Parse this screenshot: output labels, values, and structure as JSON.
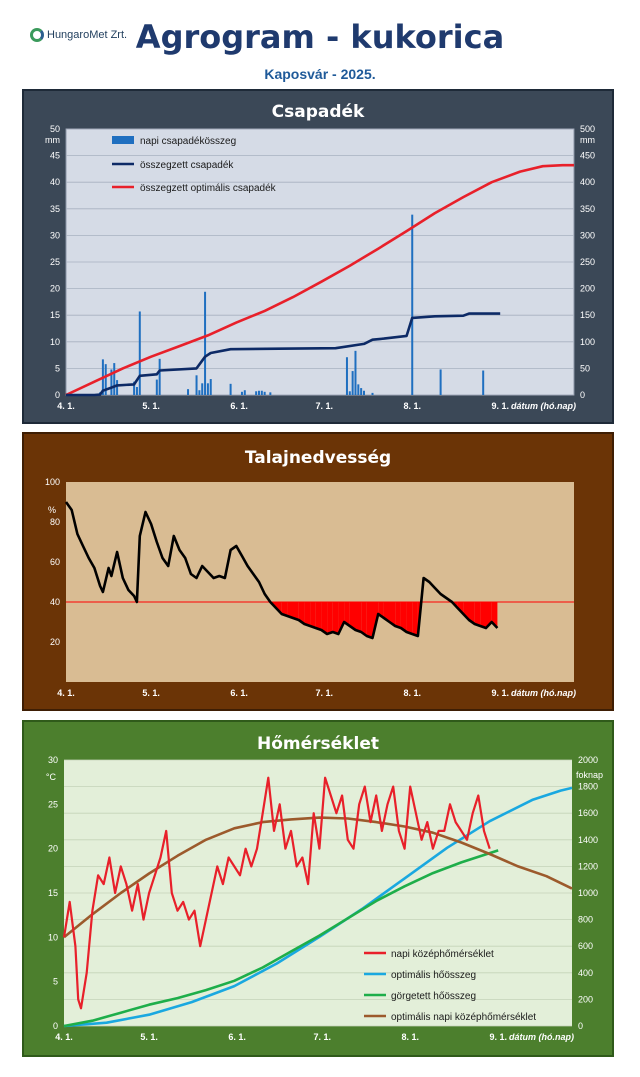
{
  "header": {
    "logo_text": "HungaroMet Zrt.",
    "title": "Agrogram - kukorica",
    "subtitle": "Kaposvár  - 2025."
  },
  "x_axis": {
    "tick_labels": [
      "4. 1.",
      "5. 1.",
      "6. 1.",
      "7. 1.",
      "8. 1.",
      "9. 1."
    ],
    "label": "dátum (hó.nap)",
    "domain_days": [
      0,
      179
    ]
  },
  "colors": {
    "precip_bar": "#1f6fc0",
    "precip_cum": "#0d2a66",
    "precip_opt": "#e8202a",
    "soil_line": "#000000",
    "soil_deficit": "#ff0000",
    "temp_daily": "#e8202a",
    "temp_opt_sum": "#1aa8e0",
    "temp_gdd": "#1eae4a",
    "temp_opt_daily": "#9c5a2c"
  },
  "chart_data": [
    {
      "type": "bar",
      "title": "Csapadék",
      "y_unit_left": "mm",
      "y_unit_right": "mm",
      "ylim_left": [
        0,
        50
      ],
      "ylim_right": [
        0,
        500
      ],
      "y_ticks_left": [
        "0",
        "5",
        "10",
        "15",
        "20",
        "25",
        "30",
        "35",
        "40",
        "45",
        "50"
      ],
      "y_ticks_right": [
        "0",
        "50",
        "100",
        "150",
        "200",
        "250",
        "300",
        "350",
        "400",
        "450",
        "500"
      ],
      "grid": true,
      "legend_position": "top-left",
      "series": [
        {
          "name": "napi csapadékösszeg",
          "kind": "bar",
          "x_day": [
            12,
            13,
            14,
            16,
            17,
            18,
            24,
            25,
            26,
            32,
            33,
            43,
            46,
            47,
            48,
            49,
            50,
            51,
            58,
            62,
            63,
            67,
            68,
            69,
            70,
            72,
            99,
            100,
            101,
            102,
            103,
            104,
            105,
            108,
            122,
            132,
            147
          ],
          "values": [
            0.5,
            6.7,
            5.8,
            4.8,
            6.0,
            2.8,
            2.5,
            1.5,
            15.7,
            2.9,
            6.8,
            1.1,
            3.7,
            0.9,
            2.2,
            19.4,
            2.2,
            3.0,
            2.1,
            0.6,
            0.9,
            0.7,
            0.8,
            0.8,
            0.6,
            0.5,
            7.1,
            0.7,
            4.5,
            8.3,
            2.0,
            1.3,
            0.8,
            0.4,
            33.9,
            4.8,
            4.6
          ]
        },
        {
          "name": "összegzett csapadék",
          "kind": "line",
          "axis": "right",
          "x_day": [
            0,
            5,
            10,
            12,
            13,
            16,
            18,
            24,
            26,
            32,
            33,
            46,
            49,
            51,
            58,
            75,
            95,
            105,
            108,
            112,
            120,
            122,
            130,
            140,
            142,
            147,
            153
          ],
          "values": [
            0,
            0,
            0,
            1,
            8,
            14,
            18,
            20,
            36,
            39,
            46,
            50,
            72,
            79,
            86,
            87,
            88,
            96,
            104,
            106,
            111,
            145,
            148,
            149,
            153,
            153,
            153
          ]
        },
        {
          "name": "összegzett optimális csapadék",
          "kind": "line",
          "axis": "right",
          "x_day": [
            0,
            10,
            20,
            30,
            40,
            50,
            60,
            70,
            80,
            90,
            100,
            110,
            120,
            130,
            140,
            150,
            160,
            168,
            175,
            179
          ],
          "values": [
            0,
            25,
            50,
            72,
            92,
            112,
            136,
            158,
            184,
            213,
            243,
            275,
            308,
            342,
            372,
            400,
            420,
            430,
            432,
            432
          ]
        }
      ]
    },
    {
      "type": "line",
      "title": "Talajnedvesség",
      "y_unit": "%",
      "ylim": [
        0,
        100
      ],
      "y_ticks": [
        "20",
        "40",
        "60",
        "80",
        "100"
      ],
      "threshold": 40,
      "grid": false,
      "series": [
        {
          "name": "talajnedvesség",
          "x_day": [
            0,
            2,
            4,
            6,
            8,
            10,
            12,
            13,
            15,
            16,
            18,
            20,
            22,
            24,
            25,
            26,
            28,
            30,
            32,
            34,
            36,
            38,
            40,
            42,
            44,
            46,
            48,
            50,
            52,
            54,
            56,
            58,
            60,
            62,
            64,
            66,
            68,
            70,
            72,
            74,
            76,
            78,
            80,
            82,
            84,
            86,
            88,
            90,
            92,
            94,
            96,
            98,
            100,
            102,
            104,
            106,
            108,
            110,
            112,
            114,
            116,
            118,
            120,
            122,
            124,
            126,
            128,
            130,
            132,
            134,
            136,
            138,
            140,
            142,
            144,
            146,
            148,
            150,
            152
          ],
          "values": [
            90,
            86,
            74,
            68,
            62,
            57,
            48,
            45,
            57,
            53,
            65,
            52,
            46,
            43,
            40,
            73,
            85,
            79,
            70,
            62,
            58,
            73,
            66,
            62,
            54,
            52,
            58,
            55,
            52,
            53,
            52,
            66,
            68,
            63,
            58,
            54,
            50,
            44,
            40,
            37,
            34,
            33,
            32,
            31,
            29,
            28,
            27,
            26,
            24,
            25,
            24,
            30,
            28,
            26,
            25,
            23,
            22,
            34,
            32,
            30,
            28,
            27,
            25,
            24,
            23,
            52,
            50,
            47,
            44,
            42,
            40,
            37,
            34,
            31,
            29,
            28,
            27,
            30,
            27
          ]
        }
      ]
    },
    {
      "type": "line",
      "title": "Hőmérséklet",
      "y_unit_left": "°C",
      "y_unit_right": "foknap",
      "ylim_left": [
        0,
        30
      ],
      "ylim_right": [
        0,
        2000
      ],
      "y_ticks_left": [
        "0",
        "5",
        "10",
        "15",
        "20",
        "25",
        "30"
      ],
      "y_ticks_right": [
        "0",
        "200",
        "400",
        "600",
        "800",
        "1000",
        "1200",
        "1400",
        "1600",
        "1800",
        "2000"
      ],
      "grid": true,
      "legend_position": "bottom-right",
      "series": [
        {
          "name": "napi középhőmérséklet",
          "axis": "left",
          "x_day": [
            0,
            2,
            4,
            5,
            6,
            8,
            10,
            12,
            14,
            16,
            18,
            20,
            22,
            24,
            26,
            28,
            30,
            32,
            34,
            36,
            38,
            40,
            42,
            44,
            46,
            48,
            50,
            52,
            54,
            56,
            58,
            60,
            62,
            64,
            66,
            68,
            70,
            72,
            74,
            76,
            78,
            80,
            82,
            84,
            86,
            88,
            90,
            92,
            94,
            96,
            98,
            100,
            102,
            104,
            106,
            108,
            110,
            112,
            114,
            116,
            118,
            120,
            122,
            124,
            126,
            128,
            130,
            132,
            134,
            136,
            138,
            140,
            142,
            144,
            146,
            148,
            150
          ],
          "values": [
            10,
            14,
            9,
            3,
            2,
            6,
            13,
            17,
            16,
            19,
            15,
            18,
            16,
            13,
            16,
            12,
            15,
            17,
            19,
            22,
            15,
            13,
            14,
            12,
            13,
            9,
            12,
            15,
            18,
            16,
            19,
            18,
            17,
            20,
            18,
            20,
            24,
            28,
            22,
            25,
            20,
            22,
            18,
            19,
            16,
            24,
            20,
            28,
            26,
            24,
            26,
            21,
            20,
            25,
            27,
            23,
            26,
            22,
            25,
            27,
            22,
            20,
            27,
            24,
            21,
            23,
            20,
            22,
            22,
            25,
            23,
            22,
            21,
            24,
            26,
            22,
            20
          ]
        },
        {
          "name": "optimális hőösszeg",
          "axis": "right",
          "x_day": [
            0,
            15,
            30,
            45,
            60,
            75,
            90,
            105,
            120,
            135,
            150,
            165,
            175,
            179
          ],
          "values": [
            0,
            25,
            85,
            180,
            300,
            470,
            670,
            880,
            1110,
            1340,
            1540,
            1700,
            1770,
            1790
          ]
        },
        {
          "name": "görgetett hőösszeg",
          "axis": "right",
          "x_day": [
            0,
            10,
            20,
            30,
            40,
            50,
            60,
            70,
            80,
            90,
            100,
            110,
            120,
            130,
            140,
            150,
            153
          ],
          "values": [
            0,
            40,
            100,
            160,
            210,
            270,
            340,
            440,
            560,
            680,
            810,
            940,
            1050,
            1150,
            1230,
            1300,
            1320
          ]
        },
        {
          "name": "optimális napi középhőmérséklet",
          "axis": "left",
          "x_day": [
            0,
            10,
            20,
            30,
            40,
            50,
            60,
            70,
            80,
            90,
            100,
            110,
            120,
            130,
            140,
            150,
            160,
            170,
            179
          ],
          "values": [
            10,
            12.6,
            15,
            17.2,
            19.2,
            21,
            22.3,
            23,
            23.3,
            23.5,
            23.4,
            23,
            22.5,
            21.8,
            20.7,
            19.4,
            18,
            16.9,
            15.5
          ]
        }
      ]
    }
  ]
}
